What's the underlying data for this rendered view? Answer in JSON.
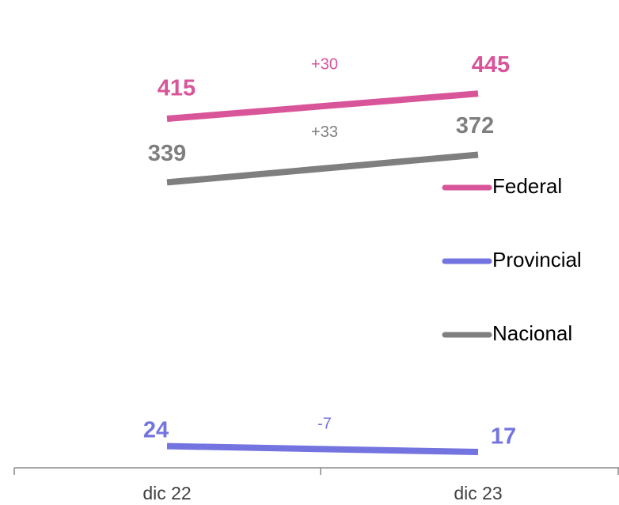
{
  "chart_data": {
    "type": "line",
    "categories": [
      "dic 22",
      "dic 23"
    ],
    "series": [
      {
        "name": "Federal",
        "color": "#d9559a",
        "values": [
          415,
          445
        ],
        "annotation": "+30"
      },
      {
        "name": "Provincial",
        "color": "#7474e0",
        "values": [
          24,
          17
        ],
        "annotation": "-7"
      },
      {
        "name": "Nacional",
        "color": "#7f7f7f",
        "values": [
          339,
          372
        ],
        "annotation": "+33"
      }
    ],
    "ylim": [
      0,
      450
    ],
    "legend": "right"
  }
}
